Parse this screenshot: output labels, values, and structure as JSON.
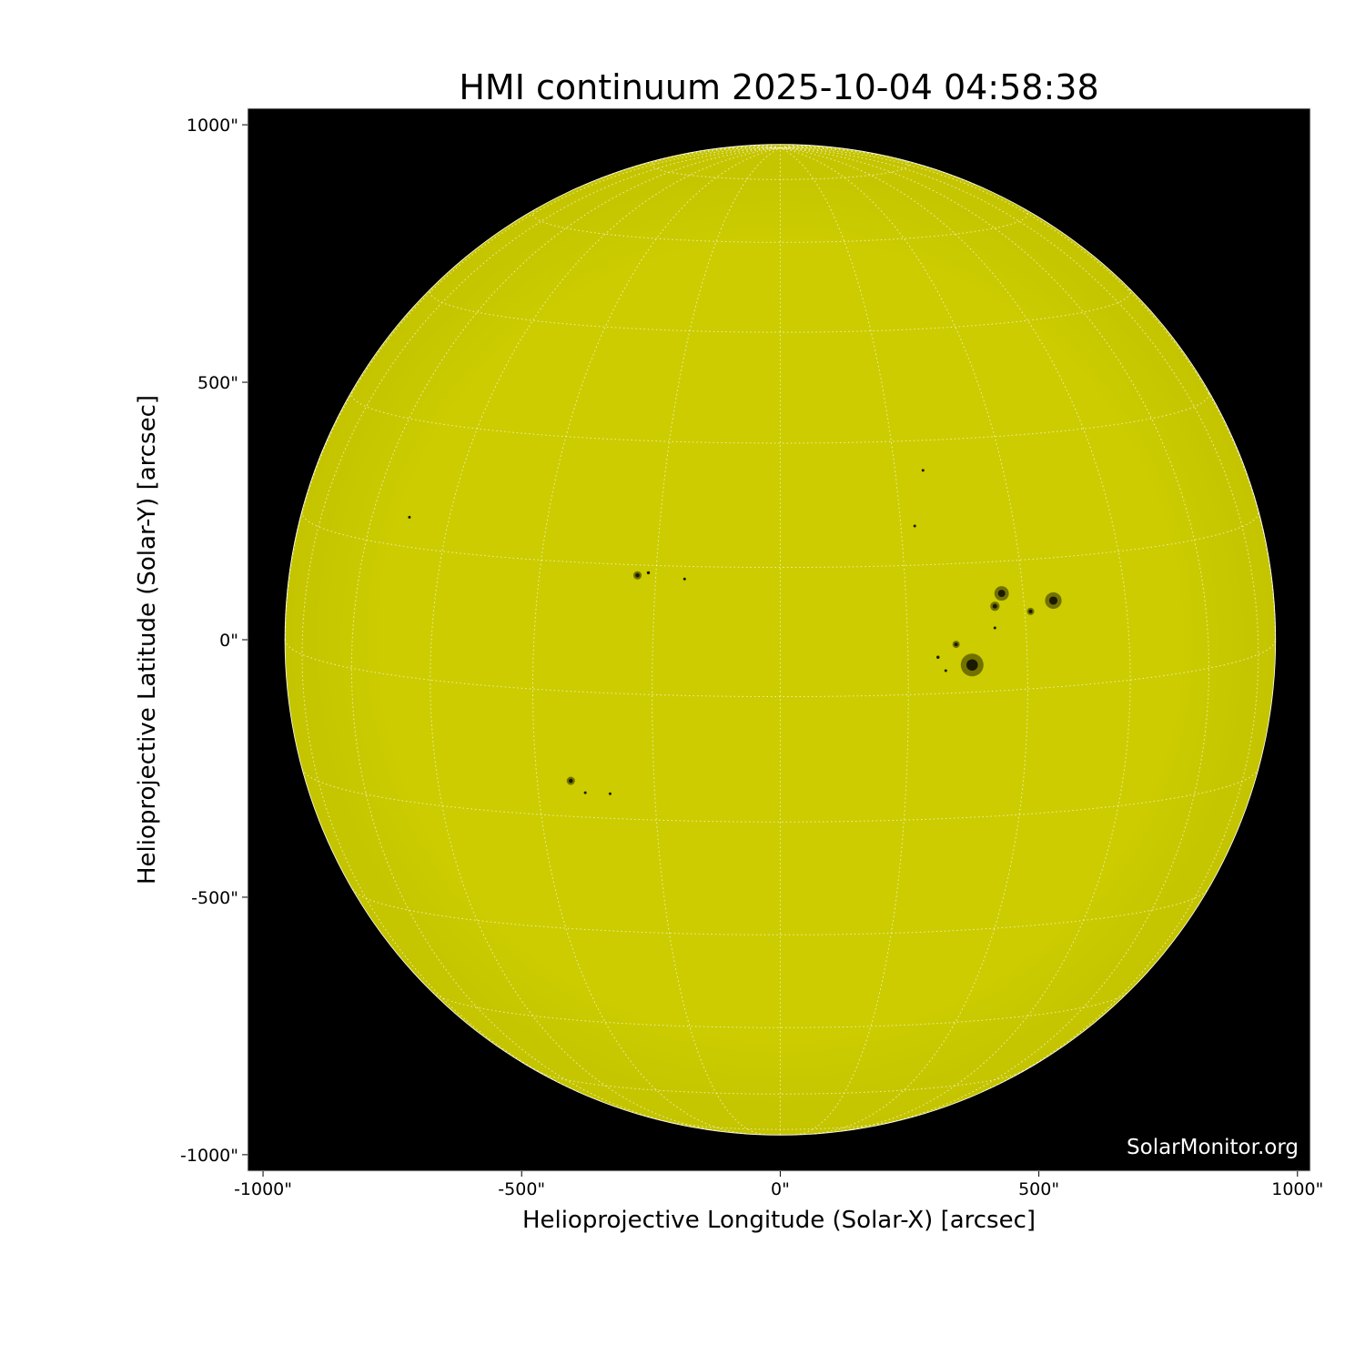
{
  "chart_data": {
    "type": "image",
    "title": "HMI continuum 2025-10-04 04:58:38",
    "xlabel": "Helioprojective Longitude (Solar-X) [arcsec]",
    "ylabel": "Helioprojective Latitude (Solar-Y) [arcsec]",
    "xlim": [
      -1030,
      1025
    ],
    "ylim": [
      -1032,
      1032
    ],
    "xticks": [
      -1000,
      -500,
      0,
      500,
      1000
    ],
    "xtick_labels": [
      "-1000\"",
      "-500\"",
      "0\"",
      "500\"",
      "1000\""
    ],
    "yticks": [
      1000,
      500,
      0,
      -500,
      -1000
    ],
    "ytick_labels": [
      "1000\"",
      "500\"",
      "0\"",
      "-500\"",
      "-1000\""
    ],
    "solar_radius_arcsec": 957,
    "grid": "heliographic, 15 degree spacing, dotted white",
    "colors": {
      "disk": "#cccc00",
      "background": "#000000",
      "spots": "#1a1a00",
      "grid": "#ffffff"
    },
    "sunspots": [
      {
        "x": 371,
        "y": -49,
        "size": 22
      },
      {
        "x": 528,
        "y": 76,
        "size": 16
      },
      {
        "x": 428,
        "y": 90,
        "size": 14
      },
      {
        "x": 415,
        "y": 65,
        "size": 9
      },
      {
        "x": 340,
        "y": -9,
        "size": 7
      },
      {
        "x": 415,
        "y": 23,
        "size": 5
      },
      {
        "x": 484,
        "y": 55,
        "size": 7
      },
      {
        "x": 305,
        "y": -34,
        "size": 6
      },
      {
        "x": 320,
        "y": -60,
        "size": 5
      },
      {
        "x": -276,
        "y": 125,
        "size": 8
      },
      {
        "x": -255,
        "y": 130,
        "size": 6
      },
      {
        "x": -185,
        "y": 118,
        "size": 5
      },
      {
        "x": -717,
        "y": 238,
        "size": 5
      },
      {
        "x": -405,
        "y": -274,
        "size": 8
      },
      {
        "x": -377,
        "y": -297,
        "size": 5
      },
      {
        "x": -329,
        "y": -299,
        "size": 5
      },
      {
        "x": 260,
        "y": 221,
        "size": 4
      },
      {
        "x": 276,
        "y": 329,
        "size": 2
      }
    ]
  },
  "watermark": "SolarMonitor.org"
}
